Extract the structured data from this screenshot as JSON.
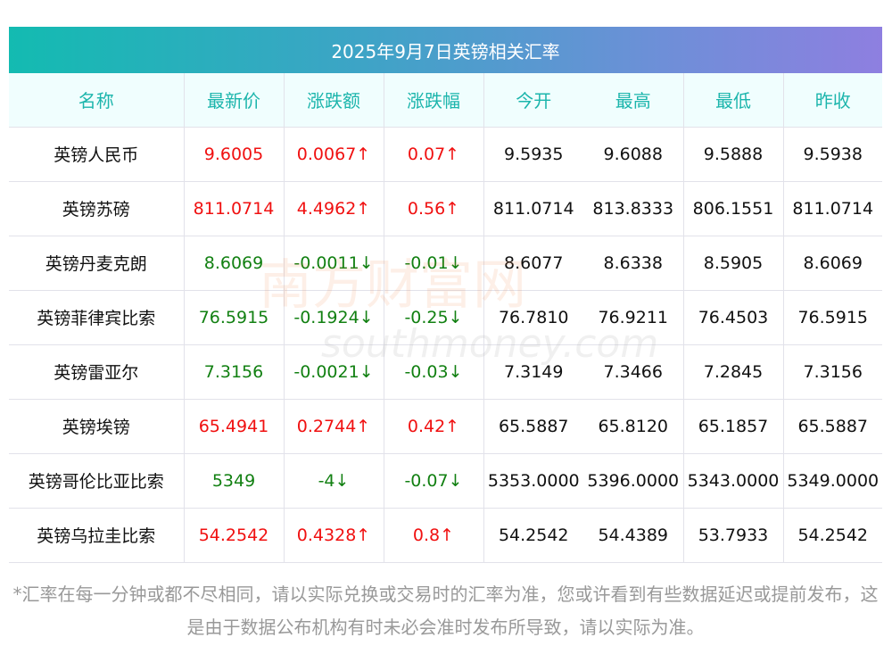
{
  "title": "2025年9月7日英镑相关汇率",
  "headers": [
    "名称",
    "最新价",
    "涨跌额",
    "涨跌幅",
    "今开",
    "最高",
    "最低",
    "昨收"
  ],
  "rows": [
    {
      "name": "英镑人民币",
      "latest": "9.6005",
      "change": "0.0067↑",
      "pct": "0.07↑",
      "open": "9.5935",
      "high": "9.6088",
      "low": "9.5888",
      "prev": "9.5938",
      "dir": "up"
    },
    {
      "name": "英镑苏磅",
      "latest": "811.0714",
      "change": "4.4962↑",
      "pct": "0.56↑",
      "open": "811.0714",
      "high": "813.8333",
      "low": "806.1551",
      "prev": "811.0714",
      "dir": "up"
    },
    {
      "name": "英镑丹麦克朗",
      "latest": "8.6069",
      "change": "-0.0011↓",
      "pct": "-0.01↓",
      "open": "8.6077",
      "high": "8.6338",
      "low": "8.5905",
      "prev": "8.6069",
      "dir": "down"
    },
    {
      "name": "英镑菲律宾比索",
      "latest": "76.5915",
      "change": "-0.1924↓",
      "pct": "-0.25↓",
      "open": "76.7810",
      "high": "76.9211",
      "low": "76.4503",
      "prev": "76.5915",
      "dir": "down"
    },
    {
      "name": "英镑雷亚尔",
      "latest": "7.3156",
      "change": "-0.0021↓",
      "pct": "-0.03↓",
      "open": "7.3149",
      "high": "7.3466",
      "low": "7.2845",
      "prev": "7.3156",
      "dir": "down"
    },
    {
      "name": "英镑埃镑",
      "latest": "65.4941",
      "change": "0.2744↑",
      "pct": "0.42↑",
      "open": "65.5887",
      "high": "65.8120",
      "low": "65.1857",
      "prev": "65.5887",
      "dir": "up"
    },
    {
      "name": "英镑哥伦比亚比索",
      "latest": "5349",
      "change": "-4↓",
      "pct": "-0.07↓",
      "open": "5353.0000",
      "high": "5396.0000",
      "low": "5343.0000",
      "prev": "5349.0000",
      "dir": "down"
    },
    {
      "name": "英镑乌拉圭比索",
      "latest": "54.2542",
      "change": "0.4328↑",
      "pct": "0.8↑",
      "open": "54.2542",
      "high": "54.4389",
      "low": "53.7933",
      "prev": "54.2542",
      "dir": "up"
    }
  ],
  "watermark": {
    "cn": "南方财富网",
    "en": "southmoney.com"
  },
  "note": "*汇率在每一分钟或都不尽相同，请以实际兑换或交易时的汇率为准，您或许看到有些数据延迟或提前发布，这是由于数据公布机构有时未必会准时发布所导致，请以实际为准。",
  "colors": {
    "up": "#f01010",
    "down": "#128012",
    "header": "#1cb5ac"
  }
}
